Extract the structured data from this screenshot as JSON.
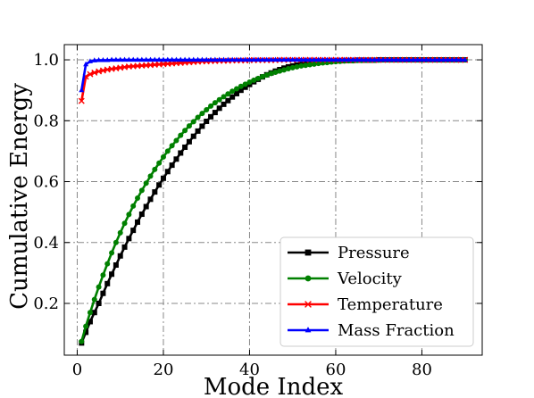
{
  "chart_data": {
    "type": "line",
    "title": "",
    "xlabel": "Mode Index",
    "ylabel": "Cumulative Energy",
    "xlim": [
      -3,
      94
    ],
    "ylim": [
      0.03,
      1.05
    ],
    "xticks": [
      0,
      20,
      40,
      60,
      80
    ],
    "yticks": [
      0.2,
      0.4,
      0.6,
      0.8,
      1.0
    ],
    "xtick_labels": [
      "0",
      "20",
      "40",
      "60",
      "80"
    ],
    "ytick_labels": [
      "0.2",
      "0.4",
      "0.6",
      "0.8",
      "1.0"
    ],
    "grid": "dash-dot",
    "legend_position": "lower-right",
    "series": [
      {
        "name": "Pressure",
        "color": "#000000",
        "marker": "square",
        "x": [
          1,
          2,
          3,
          4,
          5,
          6,
          7,
          8,
          9,
          10,
          11,
          12,
          13,
          14,
          15,
          16,
          17,
          18,
          19,
          20,
          21,
          22,
          23,
          24,
          25,
          26,
          27,
          28,
          29,
          30,
          31,
          32,
          33,
          34,
          35,
          36,
          37,
          38,
          39,
          40,
          41,
          42,
          43,
          44,
          45,
          46,
          47,
          48,
          49,
          50,
          51,
          52,
          53,
          54,
          55,
          56,
          57,
          58,
          59,
          60,
          61,
          62,
          63,
          64,
          65,
          66,
          67,
          68,
          69,
          70,
          71,
          72,
          73,
          74,
          75,
          76,
          77,
          78,
          79,
          80,
          81,
          82,
          83,
          84,
          85,
          86,
          87,
          88,
          89,
          90
        ],
        "y": [
          0.07,
          0.105,
          0.14,
          0.17,
          0.2,
          0.233,
          0.265,
          0.296,
          0.326,
          0.356,
          0.385,
          0.413,
          0.44,
          0.467,
          0.493,
          0.518,
          0.542,
          0.566,
          0.589,
          0.611,
          0.633,
          0.654,
          0.674,
          0.694,
          0.713,
          0.731,
          0.749,
          0.766,
          0.782,
          0.798,
          0.813,
          0.827,
          0.841,
          0.854,
          0.866,
          0.878,
          0.889,
          0.9,
          0.91,
          0.919,
          0.928,
          0.936,
          0.944,
          0.951,
          0.957,
          0.963,
          0.968,
          0.973,
          0.977,
          0.98,
          0.983,
          0.985,
          0.987,
          0.989,
          0.991,
          0.993,
          0.994,
          0.995,
          0.996,
          0.997,
          0.997,
          0.998,
          0.998,
          0.998,
          0.999,
          0.999,
          0.999,
          0.999,
          0.999,
          1.0,
          1.0,
          1.0,
          1.0,
          1.0,
          1.0,
          1.0,
          1.0,
          1.0,
          1.0,
          1.0,
          1.0,
          1.0,
          1.0,
          1.0,
          1.0,
          1.0,
          1.0,
          1.0,
          1.0,
          1.0
        ]
      },
      {
        "name": "Velocity",
        "color": "#008000",
        "marker": "circle",
        "x": [
          1,
          2,
          3,
          4,
          5,
          6,
          7,
          8,
          9,
          10,
          11,
          12,
          13,
          14,
          15,
          16,
          17,
          18,
          19,
          20,
          21,
          22,
          23,
          24,
          25,
          26,
          27,
          28,
          29,
          30,
          31,
          32,
          33,
          34,
          35,
          36,
          37,
          38,
          39,
          40,
          41,
          42,
          43,
          44,
          45,
          46,
          47,
          48,
          49,
          50,
          51,
          52,
          53,
          54,
          55,
          56,
          57,
          58,
          59,
          60,
          61,
          62,
          63,
          64,
          65,
          66,
          67,
          68,
          69,
          70,
          71,
          72,
          73,
          74,
          75,
          76,
          77,
          78,
          79,
          80,
          81,
          82,
          83,
          84,
          85,
          86,
          87,
          88,
          89,
          90
        ],
        "y": [
          0.075,
          0.125,
          0.17,
          0.213,
          0.254,
          0.293,
          0.33,
          0.366,
          0.4,
          0.432,
          0.463,
          0.492,
          0.52,
          0.546,
          0.571,
          0.595,
          0.618,
          0.64,
          0.661,
          0.681,
          0.7,
          0.718,
          0.735,
          0.752,
          0.768,
          0.783,
          0.797,
          0.811,
          0.824,
          0.836,
          0.848,
          0.859,
          0.869,
          0.879,
          0.888,
          0.897,
          0.905,
          0.913,
          0.92,
          0.927,
          0.933,
          0.939,
          0.945,
          0.95,
          0.955,
          0.959,
          0.963,
          0.967,
          0.971,
          0.974,
          0.977,
          0.98,
          0.982,
          0.984,
          0.986,
          0.988,
          0.99,
          0.991,
          0.993,
          0.994,
          0.995,
          0.996,
          0.997,
          0.997,
          0.998,
          0.998,
          0.999,
          0.999,
          0.999,
          0.999,
          1.0,
          1.0,
          1.0,
          1.0,
          1.0,
          1.0,
          1.0,
          1.0,
          1.0,
          1.0,
          1.0,
          1.0,
          1.0,
          1.0,
          1.0,
          1.0,
          1.0,
          1.0,
          1.0,
          1.0
        ]
      },
      {
        "name": "Temperature",
        "color": "#ff0000",
        "marker": "x",
        "x": [
          1,
          2,
          3,
          4,
          5,
          6,
          7,
          8,
          9,
          10,
          11,
          12,
          13,
          14,
          15,
          16,
          17,
          18,
          19,
          20,
          21,
          22,
          23,
          24,
          25,
          26,
          27,
          28,
          29,
          30,
          31,
          32,
          33,
          34,
          35,
          36,
          37,
          38,
          39,
          40,
          41,
          42,
          43,
          44,
          45,
          46,
          47,
          48,
          49,
          50,
          51,
          52,
          53,
          54,
          55,
          56,
          57,
          58,
          59,
          60,
          61,
          62,
          63,
          64,
          65,
          66,
          67,
          68,
          69,
          70,
          71,
          72,
          73,
          74,
          75,
          76,
          77,
          78,
          79,
          80,
          81,
          82,
          83,
          84,
          85,
          86,
          87,
          88,
          89,
          90
        ],
        "y": [
          0.865,
          0.945,
          0.953,
          0.958,
          0.962,
          0.965,
          0.968,
          0.97,
          0.972,
          0.974,
          0.976,
          0.978,
          0.979,
          0.98,
          0.981,
          0.982,
          0.983,
          0.984,
          0.985,
          0.986,
          0.987,
          0.988,
          0.989,
          0.99,
          0.991,
          0.992,
          0.993,
          0.994,
          0.995,
          0.995,
          0.996,
          0.996,
          0.997,
          0.997,
          0.997,
          0.998,
          0.998,
          0.998,
          0.998,
          0.999,
          0.999,
          0.999,
          0.999,
          0.999,
          0.999,
          0.999,
          1.0,
          1.0,
          1.0,
          1.0,
          1.0,
          1.0,
          1.0,
          1.0,
          1.0,
          1.0,
          1.0,
          1.0,
          1.0,
          1.0,
          1.0,
          1.0,
          1.0,
          1.0,
          1.0,
          1.0,
          1.0,
          1.0,
          1.0,
          1.0,
          1.0,
          1.0,
          1.0,
          1.0,
          1.0,
          1.0,
          1.0,
          1.0,
          1.0,
          1.0,
          1.0,
          1.0,
          1.0,
          1.0,
          1.0,
          1.0,
          1.0,
          1.0,
          1.0,
          1.0
        ]
      },
      {
        "name": "Mass Fraction",
        "color": "#0000ff",
        "marker": "triangle-up",
        "x": [
          1,
          2,
          3,
          4,
          5,
          6,
          7,
          8,
          9,
          10,
          11,
          12,
          13,
          14,
          15,
          16,
          17,
          18,
          19,
          20,
          21,
          22,
          23,
          24,
          25,
          26,
          27,
          28,
          29,
          30,
          31,
          32,
          33,
          34,
          35,
          36,
          37,
          38,
          39,
          40,
          41,
          42,
          43,
          44,
          45,
          46,
          47,
          48,
          49,
          50,
          51,
          52,
          53,
          54,
          55,
          56,
          57,
          58,
          59,
          60,
          61,
          62,
          63,
          64,
          65,
          66,
          67,
          68,
          69,
          70,
          71,
          72,
          73,
          74,
          75,
          76,
          77,
          78,
          79,
          80,
          81,
          82,
          83,
          84,
          85,
          86,
          87,
          88,
          89,
          90
        ],
        "y": [
          0.9,
          0.985,
          0.995,
          0.998,
          0.999,
          0.999,
          0.999,
          1.0,
          1.0,
          1.0,
          1.0,
          1.0,
          1.0,
          1.0,
          1.0,
          1.0,
          1.0,
          1.0,
          1.0,
          1.0,
          1.0,
          1.0,
          1.0,
          1.0,
          1.0,
          1.0,
          1.0,
          1.0,
          1.0,
          1.0,
          1.0,
          1.0,
          1.0,
          1.0,
          1.0,
          1.0,
          1.0,
          1.0,
          1.0,
          1.0,
          1.0,
          1.0,
          1.0,
          1.0,
          1.0,
          1.0,
          1.0,
          1.0,
          1.0,
          1.0,
          1.0,
          1.0,
          1.0,
          1.0,
          1.0,
          1.0,
          1.0,
          1.0,
          1.0,
          1.0,
          1.0,
          1.0,
          1.0,
          1.0,
          1.0,
          1.0,
          1.0,
          1.0,
          1.0,
          1.0,
          1.0,
          1.0,
          1.0,
          1.0,
          1.0,
          1.0,
          1.0,
          1.0,
          1.0,
          1.0,
          1.0,
          1.0,
          1.0,
          1.0,
          1.0,
          1.0,
          1.0,
          1.0,
          1.0,
          1.0
        ]
      }
    ]
  }
}
